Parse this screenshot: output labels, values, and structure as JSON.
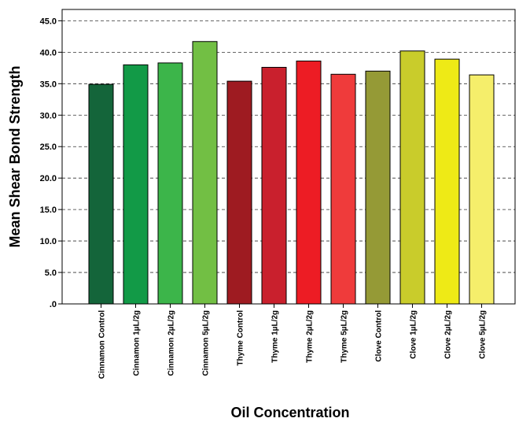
{
  "chart_data": {
    "type": "bar",
    "title": "",
    "xlabel": "Oil Concentration",
    "ylabel": "Mean Shear Bond Strength",
    "ylim": [
      0,
      45
    ],
    "yticks": [
      0,
      5,
      10,
      15,
      20,
      25,
      30,
      35,
      40,
      45
    ],
    "ytick_labels": [
      ".0",
      "5.0",
      "10.0",
      "15.0",
      "20.0",
      "25.0",
      "30.0",
      "35.0",
      "40.0",
      "45.0"
    ],
    "grid": "horizontal dashed",
    "categories": [
      "Cinnamon Control",
      "Cinnamon 1µL/2g",
      "Cinnamon 2µL/2g",
      "Cinnamon 5µL/2g",
      "Thyme Control",
      "Thyme 1µL/2g",
      "Thyme 2µL/2g",
      "Thyme 5µL/2g",
      "Clove Control",
      "Clove 1µL/2g",
      "Clove 2µL/2g",
      "Clove 5µL/2g"
    ],
    "values": [
      34.9,
      38.0,
      38.3,
      41.7,
      35.4,
      37.6,
      38.6,
      36.5,
      37.0,
      40.2,
      38.9,
      36.4
    ],
    "colors": [
      "#14653a",
      "#129a47",
      "#3cb54a",
      "#72bf44",
      "#9e1b21",
      "#c9202d",
      "#ed1c24",
      "#ef3b3b",
      "#959a36",
      "#c9cc2b",
      "#eeea16",
      "#f5ee6b"
    ]
  }
}
